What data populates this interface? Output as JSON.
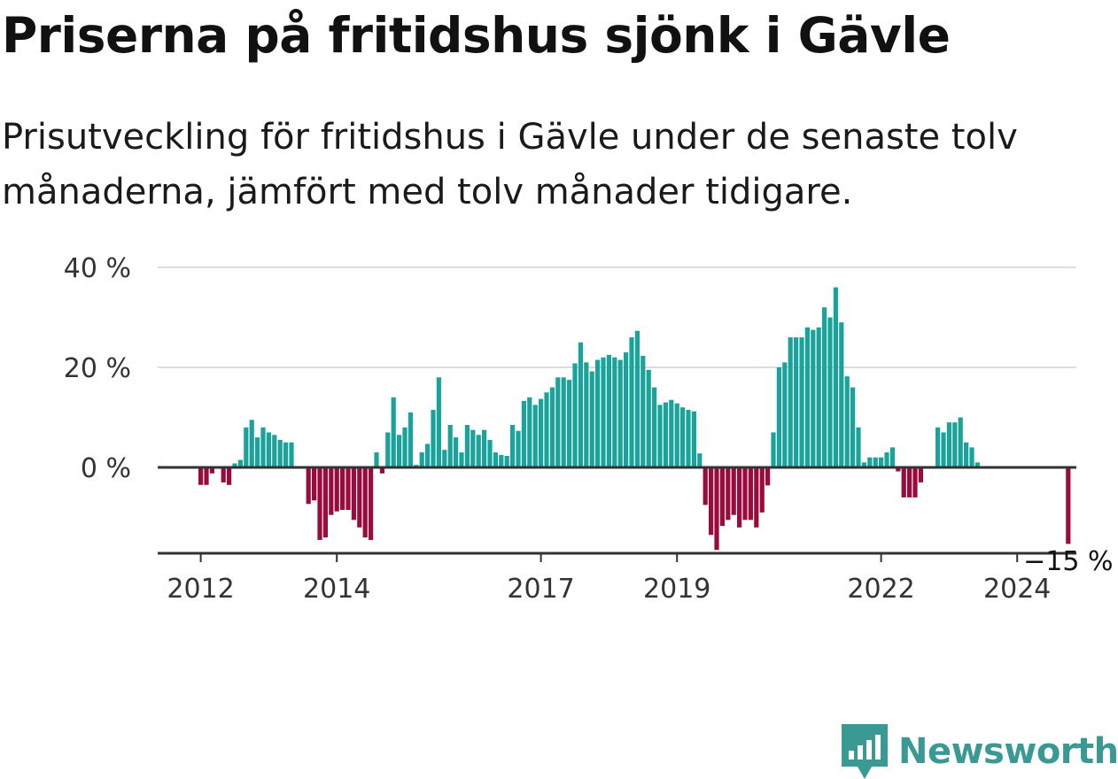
{
  "title": "Priserna på fritidshus sjönk i Gävle",
  "subtitle": "Prisutveckling för fritidshus i Gävle under de senaste tolv månaderna, jämfört med tolv månader tidigare.",
  "brand": {
    "name": "Newsworthy",
    "icon": "newsworthy-logo-icon",
    "color": "#3a9a93"
  },
  "colors": {
    "positive": "#1aa39a",
    "negative": "#9a0a3c",
    "grid": "#dddddd",
    "axis": "#333333"
  },
  "chart_data": {
    "type": "bar",
    "x_unit": "month",
    "x_start": "2011-01",
    "y_unit": "%",
    "ylim": [
      -17,
      40
    ],
    "y_ticks": [
      {
        "value": 40,
        "label": "40 %"
      },
      {
        "value": 20,
        "label": "20 %"
      },
      {
        "value": 0,
        "label": "0 %"
      }
    ],
    "x_ticks": [
      {
        "month": "2012-01",
        "label": "2012"
      },
      {
        "month": "2014-01",
        "label": "2014"
      },
      {
        "month": "2017-01",
        "label": "2017"
      },
      {
        "month": "2019-01",
        "label": "2019"
      },
      {
        "month": "2022-01",
        "label": "2022"
      },
      {
        "month": "2024-01",
        "label": "2024"
      }
    ],
    "grid": true,
    "last_value_label": "−15 %",
    "values": [
      null,
      null,
      null,
      null,
      null,
      null,
      null,
      null,
      null,
      null,
      null,
      null,
      -3.5,
      -3.5,
      -1.2,
      null,
      -3,
      -3.5,
      0.8,
      1.5,
      8,
      9.5,
      6,
      8,
      7,
      6.5,
      5.5,
      5,
      5,
      null,
      null,
      -7.3,
      -6.6,
      -14.5,
      -14,
      -9.5,
      -8.8,
      -8.5,
      -8.5,
      -10.5,
      -12,
      -14,
      -14.5,
      3,
      -1.2,
      7,
      14,
      6.5,
      8,
      11,
      0.5,
      3,
      4.7,
      11.5,
      18,
      3.5,
      8.5,
      6,
      3,
      8.5,
      7.5,
      6.5,
      7.5,
      5.5,
      3,
      2.5,
      2.3,
      8.5,
      7.3,
      13.3,
      14,
      12.5,
      13.7,
      15,
      16,
      18,
      18,
      17.5,
      20.8,
      25,
      21,
      19.2,
      21.5,
      22,
      22.5,
      22,
      21.5,
      23,
      26,
      27.3,
      22.3,
      19.5,
      16,
      12.5,
      13,
      13.5,
      12.8,
      12,
      11.5,
      11.2,
      2.8,
      -7.5,
      -13.5,
      -16.5,
      -11.7,
      -10.5,
      -9.5,
      -12,
      -10.5,
      -10.5,
      -12,
      -9,
      -3.6,
      7,
      20,
      21,
      26,
      26,
      26,
      28,
      27.5,
      28,
      32,
      30,
      36,
      29,
      18.2,
      16,
      8,
      1,
      2,
      2,
      2,
      3,
      4,
      -0.8,
      -6,
      -6,
      -6,
      -3,
      null,
      null,
      8,
      7,
      9,
      9,
      10,
      5,
      4,
      1,
      null,
      null,
      null,
      null,
      null,
      null,
      null,
      null,
      null,
      null,
      null,
      null,
      null,
      null,
      null,
      -15.3,
      null,
      null
    ]
  }
}
